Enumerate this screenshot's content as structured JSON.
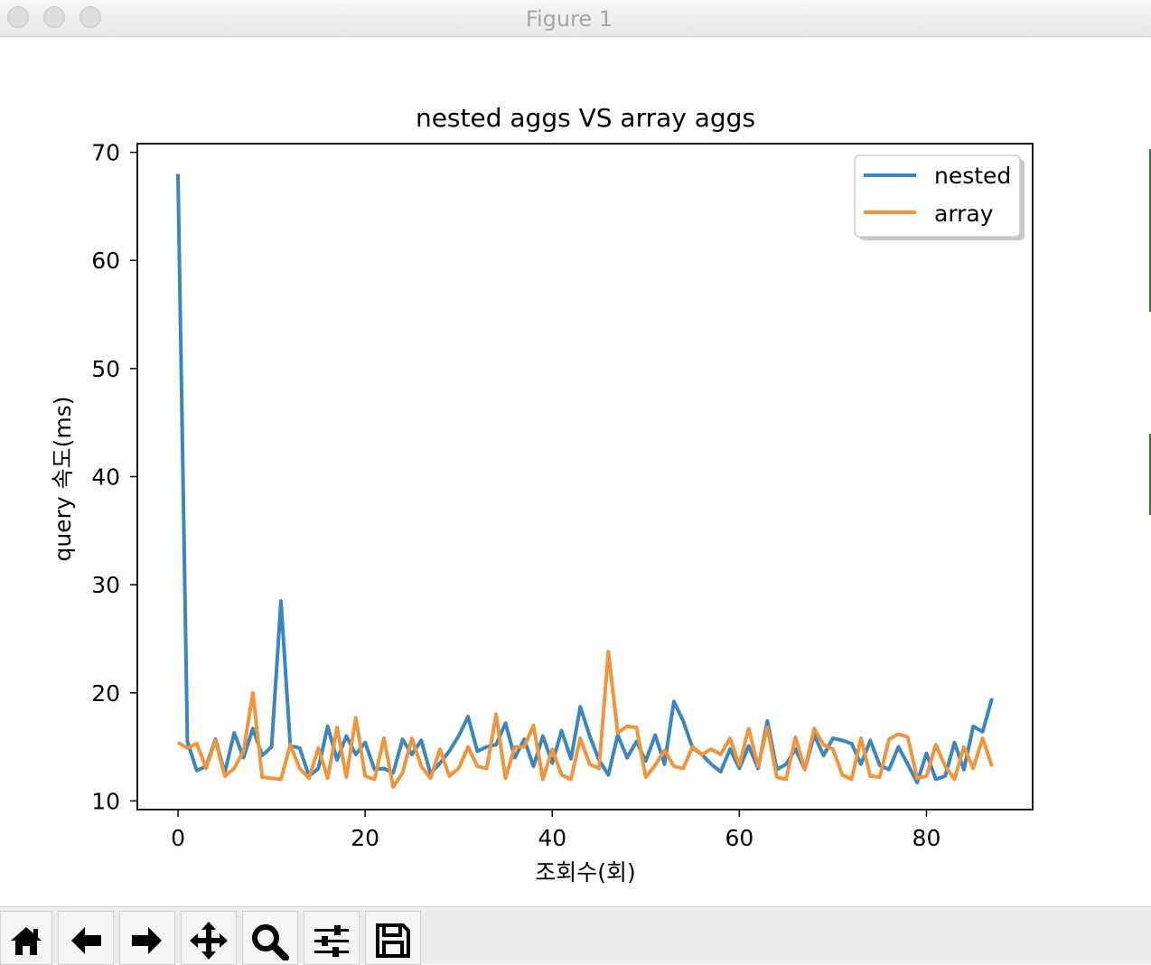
{
  "window": {
    "title": "Figure 1"
  },
  "chart_data": {
    "type": "line",
    "title": "nested aggs VS array aggs",
    "xlabel": "조회수(회)",
    "ylabel": "query 속도(ms)",
    "xlim": [
      -4.35,
      91.35
    ],
    "ylim": [
      9.2,
      70.8
    ],
    "xticks": [
      0,
      20,
      40,
      60,
      80
    ],
    "yticks": [
      10,
      20,
      30,
      40,
      50,
      60,
      70
    ],
    "grid": false,
    "legend_position": "top-right",
    "x": [
      0,
      1,
      2,
      3,
      4,
      5,
      6,
      7,
      8,
      9,
      10,
      11,
      12,
      13,
      14,
      15,
      16,
      17,
      18,
      19,
      20,
      21,
      22,
      23,
      24,
      25,
      26,
      27,
      28,
      29,
      30,
      31,
      32,
      33,
      34,
      35,
      36,
      37,
      38,
      39,
      40,
      41,
      42,
      43,
      44,
      45,
      46,
      47,
      48,
      49,
      50,
      51,
      52,
      53,
      54,
      55,
      56,
      57,
      58,
      59,
      60,
      61,
      62,
      63,
      64,
      65,
      66,
      67,
      68,
      69,
      70,
      71,
      72,
      73,
      74,
      75,
      76,
      77,
      78,
      79,
      80,
      81,
      82,
      83,
      84,
      85,
      86,
      87
    ],
    "series": [
      {
        "name": "nested",
        "color": "#3a86c0",
        "values": [
          68.0,
          15.5,
          12.8,
          13.2,
          15.7,
          12.6,
          16.3,
          14.0,
          16.7,
          14.2,
          15.0,
          28.5,
          15.1,
          14.9,
          12.3,
          13.0,
          16.9,
          13.8,
          16.0,
          14.3,
          15.4,
          12.9,
          13.0,
          12.6,
          15.7,
          14.3,
          15.6,
          12.5,
          13.5,
          14.6,
          16.0,
          17.8,
          14.6,
          15.0,
          15.2,
          17.2,
          14.0,
          15.7,
          13.2,
          16.0,
          13.5,
          16.5,
          13.9,
          18.7,
          16.0,
          13.8,
          12.4,
          16.1,
          14.0,
          15.5,
          13.7,
          16.1,
          13.4,
          19.2,
          17.4,
          14.9,
          14.3,
          13.4,
          12.7,
          14.8,
          13.0,
          15.1,
          13.0,
          17.4,
          12.9,
          13.4,
          14.8,
          12.9,
          16.1,
          14.2,
          15.8,
          15.6,
          15.3,
          13.4,
          15.6,
          13.3,
          12.9,
          15.0,
          13.4,
          11.7,
          14.4,
          12.0,
          12.3,
          15.4,
          12.9,
          16.9,
          16.4,
          19.5
        ]
      },
      {
        "name": "array",
        "color": "#f2943a",
        "values": [
          15.4,
          14.9,
          15.3,
          13.0,
          15.6,
          12.3,
          13.0,
          14.6,
          20.0,
          12.2,
          12.1,
          12.0,
          15.2,
          13.0,
          12.1,
          14.9,
          12.1,
          16.8,
          12.2,
          17.7,
          12.3,
          12.0,
          15.8,
          11.3,
          12.6,
          15.8,
          13.2,
          12.1,
          14.8,
          12.3,
          13.0,
          15.0,
          13.2,
          13.0,
          18.0,
          12.1,
          15.0,
          15.0,
          17.0,
          12.0,
          14.8,
          12.4,
          12.0,
          15.8,
          13.4,
          13.0,
          23.8,
          16.3,
          16.9,
          16.8,
          12.2,
          13.3,
          14.7,
          13.2,
          13.0,
          15.0,
          14.3,
          14.8,
          14.3,
          15.8,
          13.3,
          16.7,
          13.2,
          16.8,
          12.2,
          12.0,
          15.9,
          12.9,
          16.7,
          15.2,
          14.8,
          12.4,
          12.0,
          15.8,
          12.3,
          12.2,
          15.7,
          16.2,
          15.9,
          12.1,
          12.3,
          15.2,
          13.2,
          12.0,
          15.0,
          13.0,
          15.8,
          13.2
        ]
      }
    ]
  },
  "toolbar": {
    "buttons": [
      {
        "icon": "home-icon"
      },
      {
        "icon": "back-arrow-icon"
      },
      {
        "icon": "forward-arrow-icon"
      },
      {
        "icon": "pan-icon"
      },
      {
        "icon": "zoom-icon"
      },
      {
        "icon": "configure-subplots-icon"
      },
      {
        "icon": "save-icon"
      }
    ]
  }
}
